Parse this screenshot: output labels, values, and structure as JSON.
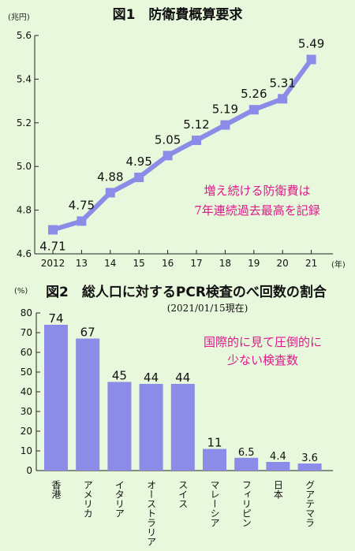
{
  "charts": [
    {
      "title": "図1　防衛費概算要求",
      "unit_y": "(兆円)",
      "unit_x": "(年)",
      "annotation": [
        "増え続ける防衛費は",
        "7年連続過去最高を記録"
      ]
    },
    {
      "title": "図2　総人口に対するPCR検査のべ回数の割合",
      "subtitle": "(2021/01/15現在)",
      "unit_y": "(%)",
      "annotation": [
        "国際的に見て圧倒的に",
        "少ない検査数"
      ]
    }
  ],
  "chart_data": [
    {
      "type": "line",
      "x": [
        "2012",
        "13",
        "14",
        "15",
        "16",
        "17",
        "18",
        "19",
        "20",
        "21"
      ],
      "y": [
        4.71,
        4.75,
        4.88,
        4.95,
        5.05,
        5.12,
        5.19,
        5.26,
        5.31,
        5.49
      ],
      "data_labels": [
        "4.71",
        "4.75",
        "4.88",
        "4.95",
        "5.05",
        "5.12",
        "5.19",
        "5.26",
        "5.31",
        "5.49"
      ],
      "ylim": [
        4.6,
        5.6
      ],
      "yticks": [
        "4.6",
        "4.8",
        "5.0",
        "5.2",
        "5.4",
        "5.6"
      ],
      "color": "#8a8ce8",
      "grid": false
    },
    {
      "type": "bar",
      "categories": [
        "香港",
        "アメリカ",
        "イタリア",
        "オーストラリア",
        "スイス",
        "マレーシア",
        "フィリピン",
        "日本",
        "グアテマラ"
      ],
      "values": [
        74,
        67,
        45,
        44,
        44,
        11,
        6.5,
        4.4,
        3.6
      ],
      "data_labels": [
        "74",
        "67",
        "45",
        "44",
        "44",
        "11",
        "6.5",
        "4.4",
        "3.6"
      ],
      "ylim": [
        0,
        80
      ],
      "yticks": [
        "0",
        "10",
        "20",
        "30",
        "40",
        "50",
        "60",
        "70",
        "80"
      ],
      "color": "#8a8ce8",
      "grid": false
    }
  ]
}
